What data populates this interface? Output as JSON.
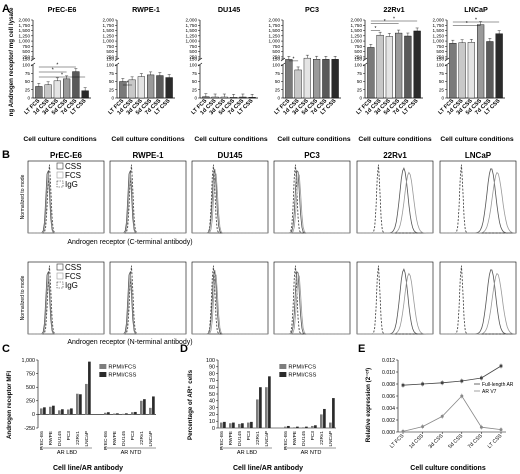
{
  "panel_a": {
    "letter": "A",
    "ylabel": "ng Androgen receptor/ mg cell lysate",
    "xlabel": "Cell culture conditions",
    "categories": [
      "LT FCS",
      "1d CSS",
      "3d CSS",
      "5d CSS",
      "7d CSS",
      "LT CSS"
    ],
    "ticks": [
      "0",
      "25",
      "50",
      "75",
      "100",
      "150",
      "250",
      "500",
      "750",
      "1,000",
      "1,250",
      "1,500",
      "1,750",
      "2,000"
    ],
    "charts": [
      {
        "title": "PrEC-E6",
        "values": [
          35,
          40,
          52,
          58,
          80,
          22
        ]
      },
      {
        "title": "RWPE-1",
        "values": [
          50,
          55,
          65,
          70,
          68,
          62
        ]
      },
      {
        "title": "DU145",
        "values": [
          4,
          3,
          3,
          2,
          3,
          2
        ]
      },
      {
        "title": "PC3",
        "values": [
          130,
          85,
          190,
          140,
          135,
          135
        ]
      },
      {
        "title": "22Rv1",
        "values": [
          700,
          1280,
          1220,
          1380,
          1240,
          1480
        ]
      },
      {
        "title": "LNCaP",
        "values": [
          900,
          920,
          940,
          1780,
          980,
          1350
        ]
      }
    ]
  },
  "panel_b": {
    "letter": "B",
    "ylabel": "Normalized to mode",
    "lines": [
      "PrEC-E6",
      "RWPE-1",
      "DU145",
      "PC3",
      "22Rv1",
      "LNCaP"
    ],
    "legend": [
      "CSS",
      "FCS",
      "IgG"
    ],
    "xlabel_top": "Androgen receptor (C-terminal antibody)",
    "xlabel_bottom": "Androgen receptor (N-terminal antibody)"
  },
  "panel_c": {
    "letter": "C",
    "ylabel": "Androgen receptor MFI",
    "xlabel": "Cell line/AR antibody",
    "groups": [
      "AR LBD",
      "AR NTD"
    ],
    "lines": [
      "PrEC-E6",
      "RWPE",
      "DU145",
      "PC3",
      "22Rv1",
      "LNCaP"
    ],
    "legend": [
      "RPMI/FCS",
      "RPMI/CSS"
    ],
    "ticks": [
      "-250",
      "0",
      "250",
      "500",
      "750",
      "1,000"
    ],
    "series": [
      {
        "name": "RPMI/FCS",
        "values": [
          110,
          140,
          75,
          90,
          380,
          560,
          30,
          15,
          10,
          40,
          250,
          120
        ]
      },
      {
        "name": "RPMI/CSS",
        "values": [
          130,
          160,
          95,
          110,
          370,
          970,
          40,
          20,
          20,
          45,
          280,
          330
        ]
      }
    ]
  },
  "panel_d": {
    "letter": "D",
    "ylabel": "Percentage of AR⁺ cells",
    "xlabel": "Cell line/AR antibody",
    "groups": [
      "AR LBD",
      "AR NTD"
    ],
    "lines": [
      "PrEC-E6",
      "RWPE",
      "DU145",
      "PC3",
      "22Rv1",
      "LNCaP"
    ],
    "legend": [
      "RPMI/FCS",
      "RPMI/CSS"
    ],
    "ticks": [
      "0",
      "10",
      "20",
      "30",
      "40",
      "50",
      "60",
      "70",
      "80",
      "90",
      "100"
    ],
    "series": [
      {
        "name": "RPMI/FCS",
        "values": [
          8,
          7,
          6,
          8,
          42,
          60,
          2,
          1,
          1,
          3,
          20,
          8
        ]
      },
      {
        "name": "RPMI/CSS",
        "values": [
          9,
          8,
          7,
          9,
          60,
          76,
          3,
          2,
          2,
          4,
          28,
          44
        ]
      }
    ]
  },
  "panel_e": {
    "letter": "E",
    "ylabel": "Relative expression (2⁻ᶜᵗ)",
    "xlabel": "Cell culture conditions",
    "categories": [
      "LT FCS",
      "1d CSS",
      "3d CSS",
      "5d CSS",
      "7d CSS",
      "LT CSS"
    ],
    "ticks": [
      "0.000",
      "0.002",
      "0.004",
      "0.006",
      "0.008",
      "0.010",
      "0.012"
    ],
    "series": [
      {
        "name": "Full-length AR",
        "values": [
          0.0078,
          0.008,
          0.0082,
          0.0085,
          0.009,
          0.011
        ]
      },
      {
        "name": "AR V7",
        "values": [
          0.0001,
          0.0009,
          0.0026,
          0.006,
          0.0008,
          0.0004
        ]
      }
    ]
  },
  "chart_data": [
    {
      "type": "bar",
      "title": "PrEC-E6",
      "ylabel": "ng Androgen receptor/ mg cell lysate",
      "categories": [
        "LT FCS",
        "1d CSS",
        "3d CSS",
        "5d CSS",
        "7d CSS",
        "LT CSS"
      ],
      "values": [
        35,
        40,
        52,
        58,
        80,
        22
      ]
    },
    {
      "type": "bar",
      "title": "RWPE-1",
      "categories": [
        "LT FCS",
        "1d CSS",
        "3d CSS",
        "5d CSS",
        "7d CSS",
        "LT CSS"
      ],
      "values": [
        50,
        55,
        65,
        70,
        68,
        62
      ]
    },
    {
      "type": "bar",
      "title": "DU145",
      "categories": [
        "LT FCS",
        "1d CSS",
        "3d CSS",
        "5d CSS",
        "7d CSS",
        "LT CSS"
      ],
      "values": [
        4,
        3,
        3,
        2,
        3,
        2
      ]
    },
    {
      "type": "bar",
      "title": "PC3",
      "categories": [
        "LT FCS",
        "1d CSS",
        "3d CSS",
        "5d CSS",
        "7d CSS",
        "LT CSS"
      ],
      "values": [
        130,
        85,
        190,
        140,
        135,
        135
      ]
    },
    {
      "type": "bar",
      "title": "22Rv1",
      "categories": [
        "LT FCS",
        "1d CSS",
        "3d CSS",
        "5d CSS",
        "7d CSS",
        "LT CSS"
      ],
      "values": [
        700,
        1280,
        1220,
        1380,
        1240,
        1480
      ]
    },
    {
      "type": "bar",
      "title": "LNCaP",
      "categories": [
        "LT FCS",
        "1d CSS",
        "3d CSS",
        "5d CSS",
        "7d CSS",
        "LT CSS"
      ],
      "values": [
        900,
        920,
        940,
        1780,
        980,
        1350
      ]
    }
  ]
}
